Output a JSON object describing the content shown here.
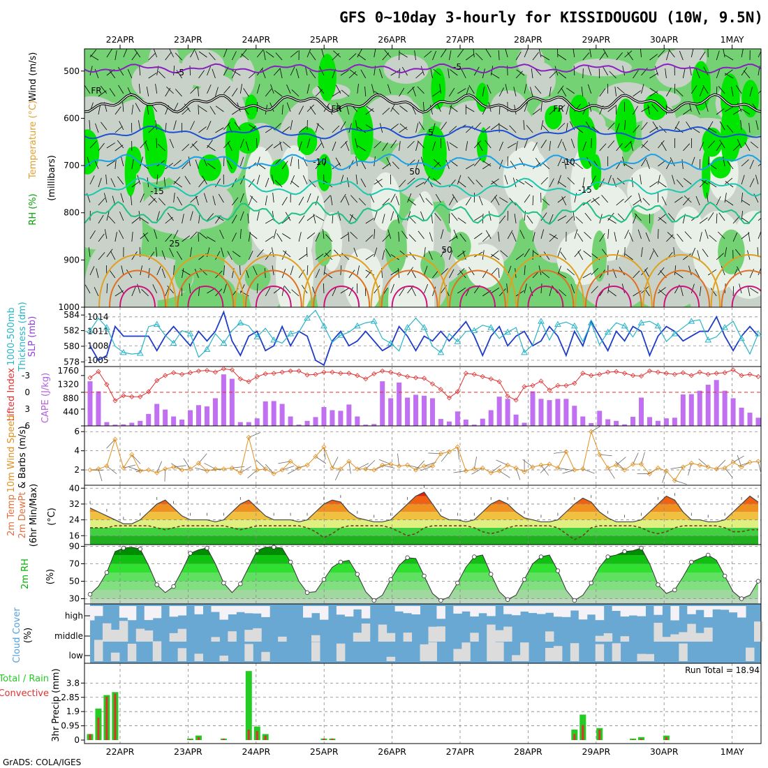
{
  "title": "GFS 0~10day 3-hourly for KISSIDOUGOU (10W, 9.5N)",
  "credit": "GrADS: COLA/IGES",
  "dates": [
    "22APR",
    "23APR",
    "24APR",
    "25APR",
    "26APR",
    "27APR",
    "28APR",
    "29APR",
    "30APR",
    "1MAY"
  ],
  "colors": {
    "rh_green_bright": "#00e600",
    "rh_green_mid": "#74d274",
    "rh_gray": "#c8d2c8",
    "rh_light": "#e8f0e8",
    "temp_purple": "#8a1fc0",
    "temp_blue": "#1e50d2",
    "temp_cyan": "#1aa0e6",
    "temp_teal": "#18c8b0",
    "temp_orange": "#e0a020",
    "temp_red": "#e06010",
    "temp_magenta": "#d0107a",
    "slp": "#1e3cc8",
    "thickness": "#28b4c8",
    "lifted_index": "#e03030",
    "cape": "#c070f0",
    "wind": "#e09020",
    "rh2m": "#00b400",
    "cloud": "#6aa8d4",
    "precip_total": "#22cc22",
    "precip_conv": "#e03030"
  },
  "chart_data": [
    {
      "type": "heatmap",
      "name": "upper-air",
      "vlabels": [
        "RH (%)",
        "Temperature (°C)",
        "Wind (m/s)"
      ],
      "ylabel": "(millibars)",
      "yticks": [
        500,
        600,
        700,
        800,
        900,
        1000
      ],
      "contour_labels": [
        "-5",
        "-5",
        "FR",
        "FR",
        "FR",
        "5",
        "-10",
        "-10",
        "-15",
        "-15",
        "25",
        "50",
        "50"
      ]
    },
    {
      "type": "line",
      "name": "slp-thickness",
      "vlabels": [
        "1000-500mb",
        "Thickness (dm)",
        "SLP (mb)"
      ],
      "left_ticks": [
        578,
        580,
        582,
        584
      ],
      "right_ticks": [
        1005,
        1008,
        1011,
        1014
      ],
      "series": [
        {
          "name": "SLP",
          "values": [
            1008,
            1005,
            1006,
            1012,
            1010,
            1010,
            1010,
            1010,
            1007,
            1010,
            1012,
            1010,
            1008,
            1011,
            1009,
            1011,
            1015,
            1009,
            1006,
            1010,
            1011,
            1007,
            1008,
            1012,
            1008,
            1011,
            1010,
            1005,
            1004,
            1009,
            1011,
            1008,
            1009,
            1011,
            1009,
            1007,
            1008,
            1012,
            1010,
            1007,
            1010,
            1009,
            1011,
            1009,
            1011,
            1013,
            1010,
            1006,
            1010,
            1012,
            1008,
            1010,
            1011,
            1008,
            1009,
            1012,
            1010,
            1006,
            1011,
            1008,
            1013,
            1010,
            1007,
            1011,
            1009,
            1012,
            1011,
            1006,
            1010,
            1012,
            1011,
            1009,
            1010,
            1011,
            1011,
            1014,
            1010,
            1007,
            1010,
            1012,
            1010
          ]
        },
        {
          "name": "Thickness",
          "values": [
            582.0,
            583.6,
            582.4,
            580.0,
            579.2,
            579.0,
            579.1,
            582.5,
            582.8,
            581.4,
            580.4,
            582.0,
            581.6,
            578.6,
            579.6,
            581.6,
            580.4,
            582.0,
            583.0,
            582.6,
            581.2,
            582.3,
            580.8,
            580.4,
            581.6,
            581.8,
            583.6,
            584.6,
            582.6,
            580.5,
            581.4,
            581.8,
            582.6,
            583.0,
            583.2,
            581.0,
            580.4,
            579.4,
            582.4,
            583.6,
            582.4,
            580.0,
            579.2,
            581.6,
            580.6,
            581.9,
            582.0,
            582.7,
            582.4,
            581.0,
            581.8,
            582.4,
            579.2,
            580.2,
            583.2,
            580.8,
            582.8,
            583.1,
            582.6,
            580.6,
            583.0,
            580.2,
            581.8,
            583.0,
            582.6,
            581.2,
            583.0,
            583.2,
            582.6,
            580.6,
            581.6,
            582.4,
            583.2,
            583.4,
            580.8,
            581.2,
            582.4,
            583.2,
            581.0,
            579.0,
            581.6
          ]
        }
      ]
    },
    {
      "type": "bar",
      "name": "lifted-cape",
      "vlabels": [
        "Lifted Index",
        "CAPE (J/kg)"
      ],
      "left_ticks": [
        -3,
        0,
        3,
        6
      ],
      "right_ticks": [
        440,
        880,
        1320,
        1760
      ],
      "series": [
        {
          "name": "CAPE",
          "values": [
            1420,
            1100,
            120,
            40,
            50,
            100,
            160,
            380,
            700,
            520,
            300,
            200,
            500,
            660,
            620,
            880,
            1640,
            1500,
            120,
            120,
            240,
            780,
            790,
            700,
            300,
            40,
            160,
            280,
            600,
            500,
            480,
            680,
            300,
            40,
            60,
            1420,
            880,
            1380,
            900,
            990,
            960,
            880,
            220,
            140,
            460,
            200,
            40,
            230,
            500,
            930,
            860,
            360,
            100,
            1100,
            860,
            820,
            860,
            860,
            640,
            300,
            90,
            480,
            210,
            160,
            50,
            290,
            900,
            280,
            160,
            240,
            260,
            1000,
            1010,
            1120,
            1310,
            1460,
            1120,
            880,
            580,
            420,
            260
          ]
        },
        {
          "name": "Lifted Index",
          "values": [
            -2.6,
            -3.7,
            -1.4,
            1.5,
            0.6,
            0.8,
            0.8,
            -0.1,
            -2.1,
            -3.0,
            -3.5,
            -3.2,
            -3.5,
            -3.8,
            -3.9,
            -3.6,
            -4.2,
            -4.0,
            -2.4,
            -1.9,
            -2.8,
            -3.3,
            -3.4,
            -3.6,
            -3.8,
            -3.8,
            -3.1,
            -3.2,
            -3.6,
            -3.6,
            -3.4,
            -3.4,
            -3.0,
            -2.4,
            -3.3,
            -3.8,
            -3.6,
            -3.2,
            -2.8,
            -2.6,
            -2.5,
            -1.5,
            -0.5,
            1.0,
            -0.1,
            -3.4,
            -3.2,
            -2.8,
            -2.4,
            -1.9,
            0.7,
            1.4,
            -1.0,
            -1.2,
            -2.0,
            -0.4,
            -1.2,
            -1.2,
            -1.6,
            -3.4,
            -3.0,
            -3.2,
            -3.6,
            -3.7,
            -3.4,
            -3.0,
            -2.9,
            -3.8,
            -3.6,
            -3.4,
            -3.2,
            -3.5,
            -3.0,
            -3.6,
            -3.2,
            -3.4,
            -3.5,
            -4.0,
            -3.0,
            -3.2,
            -2.8
          ]
        }
      ]
    },
    {
      "type": "line",
      "name": "wind-10m",
      "vlabels": [
        "10m Wind Speed",
        "& Barbs (m/s)"
      ],
      "yticks": [
        2,
        4,
        6
      ],
      "series": [
        {
          "name": "10m Wind Speed",
          "values": [
            2.0,
            2.1,
            2.4,
            5.2,
            2.2,
            3.6,
            1.9,
            2.0,
            1.7,
            2.1,
            2.3,
            2.0,
            2.1,
            2.7,
            1.9,
            2.1,
            2.1,
            2.2,
            1.7,
            5.4,
            2.0,
            2.1,
            1.6,
            2.0,
            2.9,
            2.2,
            2.5,
            3.4,
            4.4,
            2.2,
            2.1,
            2.9,
            2.1,
            2.1,
            2.0,
            2.5,
            2.6,
            2.4,
            2.5,
            2.0,
            2.4,
            2.4,
            3.7,
            3.9,
            4.4,
            1.9,
            2.1,
            2.2,
            1.7,
            1.9,
            2.5,
            2.2,
            1.8,
            2.3,
            2.5,
            2.6,
            2.2,
            3.9,
            2.0,
            2.1,
            6.0,
            3.6,
            2.2,
            2.5,
            2.0,
            2.6,
            2.6,
            1.6,
            2.2,
            1.9,
            0.9,
            2.3,
            2.7,
            2.5,
            2.3,
            2.1,
            2.2,
            2.8,
            2.3,
            2.8,
            2.9
          ]
        }
      ]
    },
    {
      "type": "area",
      "name": "temp-dewpoint",
      "vlabels": [
        "2m Temp",
        "2m DewPt",
        "(6hr Min/Max)"
      ],
      "ylabel": "(°C)",
      "yticks": [
        16,
        24,
        32,
        40
      ],
      "series": [
        {
          "name": "2m Temp",
          "values": [
            30,
            28,
            26,
            24,
            22,
            22,
            24,
            28,
            32,
            34,
            30,
            26,
            24,
            24,
            24,
            23,
            24,
            28,
            32,
            34,
            30,
            26,
            24,
            24,
            24,
            23,
            24,
            28,
            32,
            34,
            33,
            28,
            25,
            24,
            23,
            23,
            24,
            28,
            32,
            36,
            38,
            32,
            26,
            24,
            24,
            23,
            24,
            28,
            32,
            34,
            32,
            28,
            25,
            24,
            23,
            23,
            24,
            28,
            32,
            35,
            33,
            28,
            25,
            23,
            23,
            23,
            24,
            28,
            32,
            36,
            34,
            28,
            24,
            24,
            23,
            23,
            24,
            28,
            32,
            36,
            33
          ]
        },
        {
          "name": "2m DewPt",
          "values": [
            20,
            20,
            20,
            21,
            21,
            21,
            21,
            21,
            20,
            19,
            20,
            21,
            21,
            21,
            21,
            21,
            21,
            20,
            19,
            20,
            21,
            21,
            21,
            21,
            21,
            21,
            20,
            18,
            15,
            17,
            20,
            21,
            21,
            21,
            21,
            21,
            20,
            18,
            16,
            17,
            20,
            21,
            21,
            21,
            21,
            21,
            20,
            18,
            17,
            18,
            20,
            21,
            21,
            21,
            21,
            21,
            20,
            17,
            14,
            16,
            20,
            21,
            21,
            21,
            21,
            21,
            20,
            18,
            17,
            18,
            20,
            21,
            21,
            21,
            21,
            21,
            20,
            18,
            18,
            19,
            19
          ]
        }
      ]
    },
    {
      "type": "area",
      "name": "rh-2m",
      "vlabels": [
        "2m RH"
      ],
      "ylabel": "(%)",
      "yticks": [
        30,
        50,
        70,
        90
      ],
      "series": [
        {
          "name": "2m RH",
          "values": [
            35,
            44,
            60,
            84,
            88,
            89,
            87,
            68,
            46,
            37,
            44,
            62,
            82,
            86,
            88,
            70,
            48,
            37,
            47,
            66,
            85,
            89,
            89,
            88,
            72,
            50,
            37,
            38,
            52,
            66,
            72,
            74,
            58,
            38,
            28,
            34,
            52,
            68,
            77,
            76,
            56,
            36,
            28,
            32,
            48,
            66,
            78,
            80,
            58,
            38,
            29,
            34,
            52,
            70,
            78,
            80,
            62,
            40,
            28,
            34,
            48,
            66,
            78,
            80,
            84,
            85,
            88,
            70,
            46,
            36,
            40,
            55,
            72,
            76,
            80,
            74,
            56,
            38,
            30,
            34,
            50
          ]
        }
      ]
    },
    {
      "type": "heatmap",
      "name": "cloud-cover",
      "vlabels": [
        "Cloud Cover",
        "(%)"
      ],
      "levels": [
        "high",
        "middle",
        "low"
      ]
    },
    {
      "type": "bar",
      "name": "precip",
      "vlabels": [
        "Total / Rain",
        "Convective"
      ],
      "ylabel": "3hr Precip (mm)",
      "yticks": [
        0,
        0.95,
        1.9,
        2.85,
        3.8
      ],
      "run_total_label": "Run Total = 18.94",
      "series": [
        {
          "name": "Total",
          "values": [
            0.4,
            2.1,
            3.0,
            3.2,
            0,
            0,
            0,
            0,
            0,
            0,
            0,
            0,
            0.1,
            0.3,
            0,
            0,
            0.1,
            0,
            0,
            4.6,
            0.9,
            0.4,
            0,
            0,
            0,
            0,
            0,
            0,
            0.1,
            0.1,
            0,
            0,
            0,
            0,
            0,
            0,
            0,
            0,
            0,
            0,
            0,
            0,
            0,
            0,
            0,
            0,
            0,
            0,
            0,
            0,
            0,
            0,
            0,
            0,
            0,
            0,
            0,
            0,
            0.7,
            1.7,
            0,
            0.8,
            0,
            0,
            0,
            0.1,
            0.2,
            0,
            0,
            0.3,
            0,
            0,
            0,
            0,
            0,
            0,
            0,
            0,
            0,
            0,
            0
          ]
        },
        {
          "name": "Convective",
          "values": [
            0.4,
            1.5,
            2.9,
            3.1,
            0,
            0,
            0,
            0,
            0,
            0,
            0,
            0,
            0.05,
            0.2,
            0,
            0,
            0.1,
            0,
            0,
            0.7,
            0.6,
            0.3,
            0,
            0,
            0,
            0,
            0,
            0,
            0.1,
            0.1,
            0,
            0,
            0,
            0,
            0,
            0,
            0,
            0,
            0,
            0,
            0,
            0,
            0,
            0,
            0,
            0,
            0,
            0,
            0,
            0,
            0,
            0,
            0,
            0,
            0,
            0,
            0,
            0,
            0.4,
            1.0,
            0,
            0.7,
            0,
            0,
            0,
            0.05,
            0.1,
            0,
            0,
            0.2,
            0,
            0,
            0,
            0,
            0,
            0,
            0,
            0,
            0,
            0,
            0
          ]
        }
      ]
    }
  ]
}
